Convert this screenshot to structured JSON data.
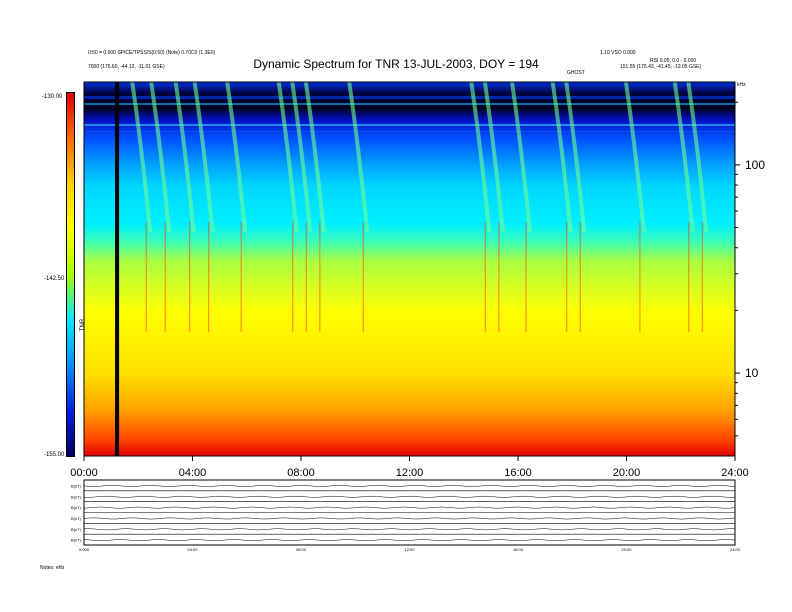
{
  "header": {
    "title": "Dynamic Spectrum for TNR 13-JUL-2003, DOY = 194",
    "info_left": [
      "0:50 = 0.000 SPICE/TPSS/S(0:50) (Note)  0.70C0 (1.3E0)",
      "7000 (175.60, -44.13, -11.01 GSE)"
    ],
    "info_right": [
      "1.10 VSO 0.000",
      "RSI 0.05, 0.0 - 0.000",
      "151.55 (175.43, -41.45, -12.05 GSE)"
    ],
    "event_label": "GHOST",
    "units_label": "kHz"
  },
  "colorbar": {
    "max_label": "-130.00",
    "mid_label": "-142.50",
    "min_label": "-155.00",
    "side_label": "TNR",
    "stops": [
      "#e00000",
      "#ff6a00",
      "#ffd000",
      "#ffff00",
      "#a8ff00",
      "#00e8ff",
      "#0090ff",
      "#0020e0",
      "#000060"
    ]
  },
  "chart_data": {
    "type": "heatmap",
    "title": "Dynamic Spectrum for TNR 13-JUL-2003, DOY = 194",
    "x_ticks": [
      "00:00",
      "04:00",
      "08:00",
      "12:00",
      "16:00",
      "20:00",
      "24:00"
    ],
    "xlim_hours": [
      0,
      24
    ],
    "y_scale": "log",
    "ylim_khz": [
      4,
      250
    ],
    "y_ticks": [
      {
        "value": 10,
        "label": "10"
      },
      {
        "value": 100,
        "label": "100"
      }
    ],
    "color_scale": {
      "min": -155.0,
      "mid": -142.5,
      "max": -130.0,
      "label": "TNR"
    },
    "data_gap_hours": 1.22,
    "type_iii_bursts_hours": [
      2.0,
      2.7,
      3.6,
      4.3,
      5.5,
      7.4,
      7.9,
      8.4,
      10.0,
      14.5,
      15.0,
      16.0,
      17.5,
      18.0,
      20.2,
      22.0,
      22.5
    ],
    "grid": false
  },
  "panels": {
    "labels": [
      "B(nT)",
      "B(nT)",
      "B(nT)",
      "B(nT)",
      "B(nT)",
      "B(nT)"
    ],
    "x_ticks": [
      "0:000",
      "04:00",
      "08:00",
      "12:00",
      "16:00",
      "20:00",
      "24:00"
    ],
    "footer": "Notes: ehb"
  }
}
